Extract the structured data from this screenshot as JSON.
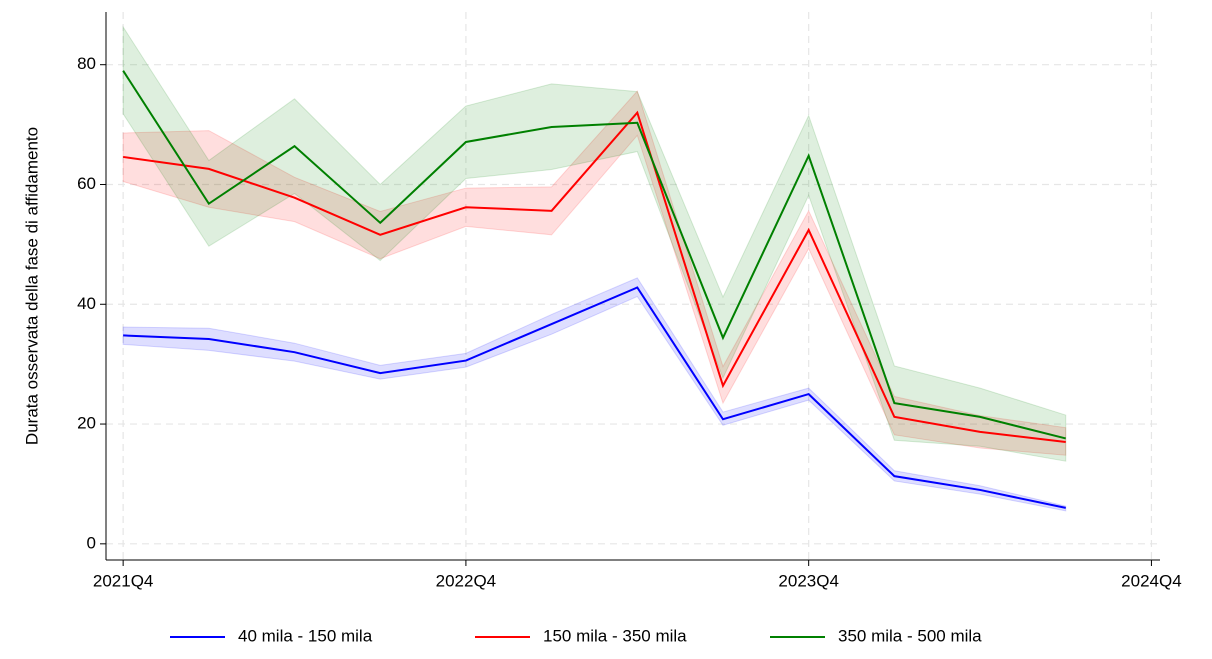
{
  "chart_data": {
    "type": "line",
    "y_label": "Durata osservata della fase di affidamento",
    "x": [
      0,
      1,
      2,
      3,
      4,
      5,
      6,
      7,
      8,
      9,
      10,
      11
    ],
    "xlim": [
      -0.2,
      12.1
    ],
    "xticks": [
      {
        "value": 0,
        "label": "2021Q4"
      },
      {
        "value": 4,
        "label": "2022Q4"
      },
      {
        "value": 8,
        "label": "2023Q4"
      },
      {
        "value": 12,
        "label": "2024Q4"
      }
    ],
    "ylim": [
      -2.7,
      88.8
    ],
    "yticks": [
      0,
      20,
      40,
      60,
      80
    ],
    "grid": true,
    "legend": "bottom",
    "series": [
      {
        "name": "40 mila - 150 mila",
        "color": "#0000ff",
        "values": [
          34.8,
          34.2,
          32,
          28.5,
          30.6,
          36.7,
          42.8,
          20.8,
          25,
          11.3,
          9,
          6
        ],
        "lower": [
          33.3,
          32.3,
          30.5,
          27.5,
          29.5,
          35,
          41.3,
          19.8,
          24,
          10.5,
          8.3,
          5.5
        ],
        "upper": [
          36.2,
          36,
          33.5,
          29.8,
          31.8,
          38.3,
          44.4,
          22,
          26,
          12.2,
          9.7,
          6.3
        ]
      },
      {
        "name": "150 mila - 350 mila",
        "color": "#ff0000",
        "values": [
          64.6,
          62.6,
          57.8,
          51.6,
          56.2,
          55.6,
          72,
          26.4,
          52.4,
          21.2,
          18.7,
          17
        ],
        "lower": [
          60.5,
          56.2,
          53.8,
          47.6,
          53,
          51.6,
          68.2,
          23.5,
          49.3,
          18.2,
          16,
          14.8
        ],
        "upper": [
          68.6,
          69,
          61.2,
          55.5,
          59.4,
          59.6,
          75.6,
          29.6,
          55.6,
          24.6,
          21.4,
          19.4
        ]
      },
      {
        "name": "350 mila - 500 mila",
        "color": "#008000",
        "values": [
          79,
          56.8,
          66.4,
          53.6,
          67.1,
          69.6,
          70.3,
          34.4,
          64.8,
          23.5,
          21.2,
          17.6
        ],
        "lower": [
          71.8,
          49.7,
          58.5,
          47.3,
          61,
          62.5,
          65.5,
          27.7,
          58.2,
          17.3,
          16.3,
          13.8
        ],
        "upper": [
          86.3,
          64,
          74.3,
          60,
          73.1,
          76.8,
          75.5,
          41.2,
          71.5,
          29.7,
          26,
          21.5
        ]
      }
    ]
  }
}
